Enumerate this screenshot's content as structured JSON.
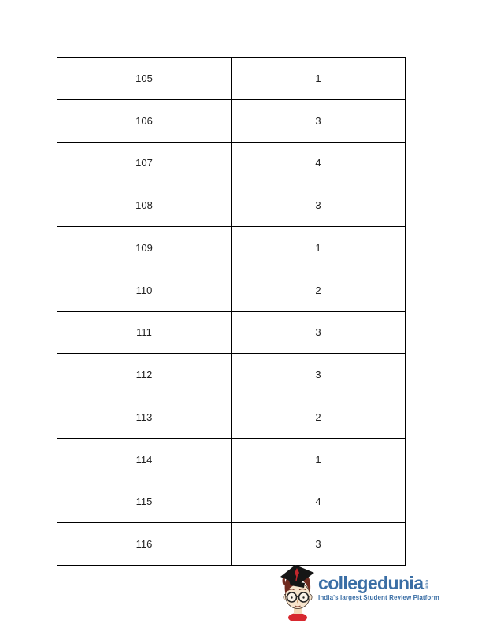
{
  "page": {
    "background_color": "#ffffff"
  },
  "answer_table": {
    "border_color": "#000000",
    "text_color": "#212121",
    "rows": [
      {
        "question": "105",
        "answer": "1"
      },
      {
        "question": "106",
        "answer": "3"
      },
      {
        "question": "107",
        "answer": "4"
      },
      {
        "question": "108",
        "answer": "3"
      },
      {
        "question": "109",
        "answer": "1"
      },
      {
        "question": "110",
        "answer": "2"
      },
      {
        "question": "111",
        "answer": "3"
      },
      {
        "question": "112",
        "answer": "3"
      },
      {
        "question": "113",
        "answer": "2"
      },
      {
        "question": "114",
        "answer": "1"
      },
      {
        "question": "115",
        "answer": "4"
      },
      {
        "question": "116",
        "answer": "3"
      }
    ]
  },
  "logo": {
    "brand": "collegedunia",
    "suffix": "com",
    "tagline": "India's largest Student Review Platform",
    "brand_color": "#3a6ea5",
    "mascot_icon": "student-graduate-mascot-icon"
  }
}
